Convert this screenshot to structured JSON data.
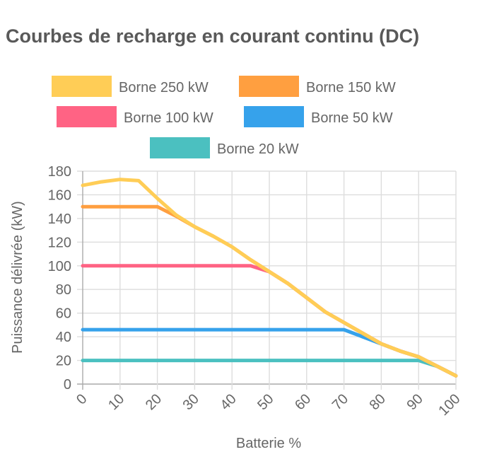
{
  "chart_data": {
    "type": "line",
    "title": "Courbes de recharge en courant continu (DC)",
    "xlabel": "Batterie %",
    "ylabel": "Puissance délivrée (kW)",
    "xlim": [
      0,
      100
    ],
    "ylim": [
      0,
      180
    ],
    "x_ticks": [
      0,
      10,
      20,
      30,
      40,
      50,
      60,
      70,
      80,
      90,
      100
    ],
    "y_ticks": [
      0,
      20,
      40,
      60,
      80,
      100,
      120,
      140,
      160,
      180
    ],
    "grid": true,
    "legend_position": "top",
    "series": [
      {
        "name": "Borne 20 kW",
        "color": "#4bc0c0",
        "x": [
          0,
          10,
          20,
          30,
          40,
          50,
          60,
          70,
          80,
          90,
          95,
          100
        ],
        "y": [
          20,
          20,
          20,
          20,
          20,
          20,
          20,
          20,
          20,
          20,
          15,
          7
        ]
      },
      {
        "name": "Borne 50 kW",
        "color": "#36a2eb",
        "x": [
          0,
          10,
          20,
          30,
          40,
          50,
          60,
          70,
          75,
          80,
          85,
          90,
          95,
          100
        ],
        "y": [
          46,
          46,
          46,
          46,
          46,
          46,
          46,
          46,
          40,
          34,
          28,
          23,
          15,
          7
        ]
      },
      {
        "name": "Borne 100 kW",
        "color": "#ff6384",
        "x": [
          0,
          10,
          20,
          30,
          40,
          45,
          50,
          55,
          60,
          65,
          70,
          75,
          80,
          85,
          90,
          95,
          100
        ],
        "y": [
          100,
          100,
          100,
          100,
          100,
          100,
          95,
          85,
          73,
          61,
          52,
          43,
          34,
          28,
          23,
          15,
          7
        ]
      },
      {
        "name": "Borne 150 kW",
        "color": "#ff9f40",
        "x": [
          0,
          10,
          20,
          25,
          30,
          35,
          40,
          45,
          50,
          55,
          60,
          65,
          70,
          75,
          80,
          85,
          90,
          95,
          100
        ],
        "y": [
          150,
          150,
          150,
          142,
          133,
          125,
          116,
          105,
          95,
          85,
          73,
          61,
          52,
          43,
          34,
          28,
          23,
          15,
          7
        ]
      },
      {
        "name": "Borne 250 kW",
        "color": "#ffcd56",
        "x": [
          0,
          5,
          10,
          15,
          20,
          25,
          30,
          35,
          40,
          45,
          50,
          55,
          60,
          65,
          70,
          75,
          80,
          85,
          90,
          95,
          100
        ],
        "y": [
          168,
          171,
          173,
          172,
          157,
          143,
          133,
          125,
          116,
          105,
          95,
          85,
          73,
          61,
          52,
          43,
          34,
          28,
          23,
          15,
          7
        ]
      }
    ],
    "legend_order": [
      "Borne 250 kW",
      "Borne 150 kW",
      "Borne 100 kW",
      "Borne 50 kW",
      "Borne 20 kW"
    ]
  }
}
